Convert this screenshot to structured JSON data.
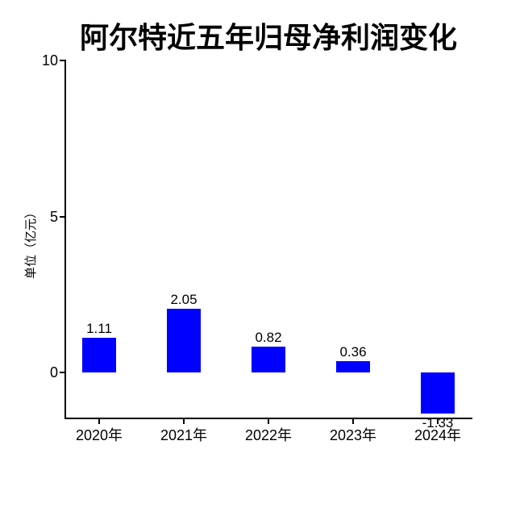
{
  "page": {
    "background_color": "#ffffff",
    "text_color": "#000000",
    "axis_color": "#000000"
  },
  "chart_data": {
    "type": "bar",
    "title": "阿尔特近五年归母净利润变化",
    "ylabel": "单位（亿元）",
    "xlabel": "",
    "categories": [
      "2020年",
      "2021年",
      "2022年",
      "2023年",
      "2024年"
    ],
    "values": [
      1.11,
      2.05,
      0.82,
      0.36,
      -1.33
    ],
    "data_labels": [
      "1.11",
      "2.05",
      "0.82",
      "0.36",
      "-1.33"
    ],
    "yticks": [
      0,
      5,
      10
    ],
    "ytick_labels": [
      "0",
      "5",
      "10"
    ],
    "ylim": [
      -1.47,
      10.05
    ],
    "bar_color": "#0000ff",
    "grid": false,
    "legend_position": "none"
  }
}
